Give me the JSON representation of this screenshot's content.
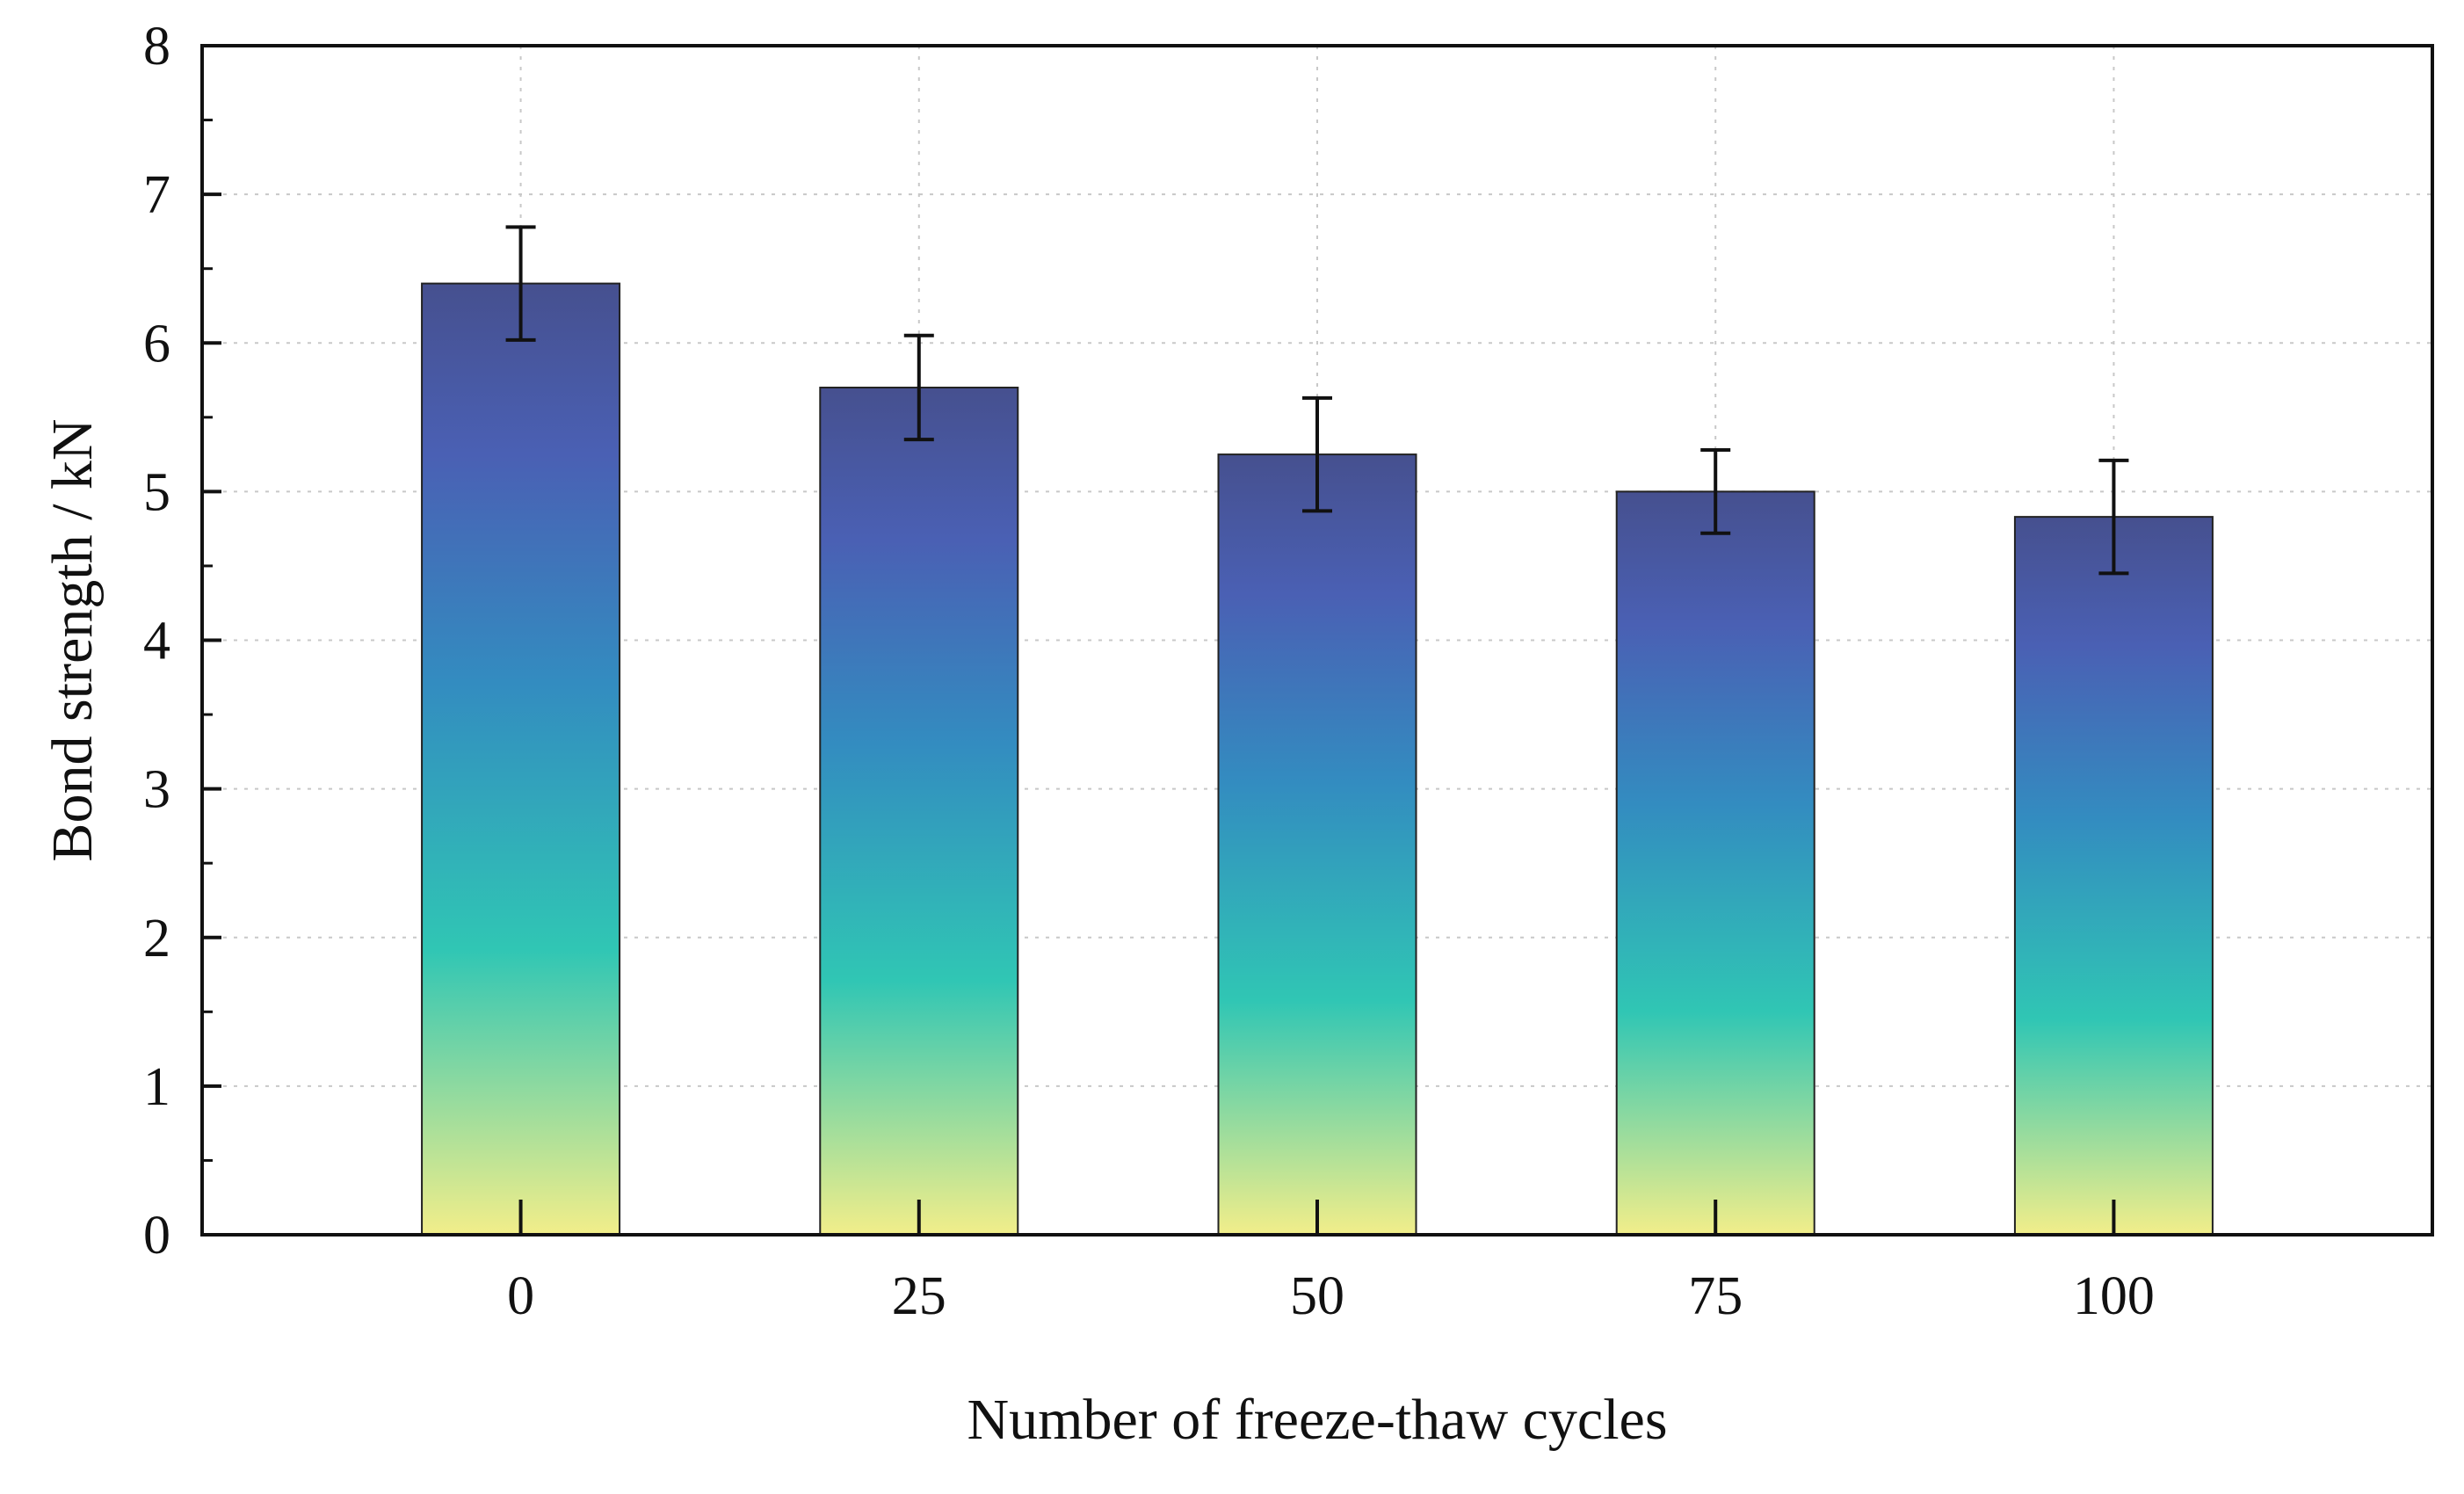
{
  "chart_data": {
    "type": "bar",
    "categories": [
      "0",
      "25",
      "50",
      "75",
      "100"
    ],
    "values": [
      6.4,
      5.7,
      5.25,
      5.0,
      4.83
    ],
    "errors": [
      0.38,
      0.35,
      0.38,
      0.28,
      0.38
    ],
    "xlabel": "Number of freeze-thaw cycles",
    "ylabel": "Bond strength / kN",
    "ylim": [
      0,
      8
    ],
    "yticks": [
      "0",
      "1",
      "2",
      "3",
      "4",
      "5",
      "6",
      "7",
      "8"
    ],
    "grid": true,
    "legend": "none",
    "colors": {
      "gradient_top": "#46508f",
      "gradient_upper": "#4a60b4",
      "gradient_mid": "#338cc0",
      "gradient_lower": "#30c6b4",
      "gradient_bottom": "#f2ee8a",
      "error_bar": "#111111",
      "axis": "#111111",
      "grid": "#c8c8c8"
    }
  }
}
